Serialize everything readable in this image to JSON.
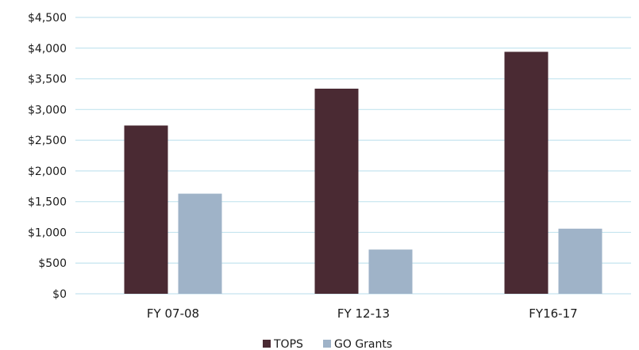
{
  "chart_data": {
    "type": "bar",
    "categories": [
      "FY 07-08",
      "FY 12-13",
      "FY16-17"
    ],
    "series": [
      {
        "name": "TOPS",
        "color": "#4a2a33",
        "values": [
          2740,
          3340,
          3940
        ]
      },
      {
        "name": "GO Grants",
        "color": "#9fb3c8",
        "values": [
          1630,
          720,
          1060
        ]
      }
    ],
    "ylim": [
      0,
      4500
    ],
    "yticks": [
      "$0",
      "$500",
      "$1,000",
      "$1,500",
      "$2,000",
      "$2,500",
      "$3,000",
      "$3,500",
      "$4,000",
      "$4,500"
    ],
    "ytick_values": [
      0,
      500,
      1000,
      1500,
      2000,
      2500,
      3000,
      3500,
      4000,
      4500
    ],
    "grid": true,
    "grid_color": "#c5e4ef",
    "legend_position": "bottom-center",
    "title": "",
    "xlabel": "",
    "ylabel": ""
  }
}
